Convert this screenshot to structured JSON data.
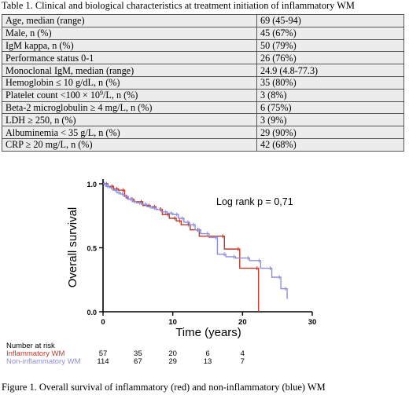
{
  "table": {
    "caption": "Table 1. Clinical and biological characteristics at treatment initiation of inflammatory WM",
    "rows": [
      {
        "label": "Age, median (range)",
        "value": "69 (45-94)"
      },
      {
        "label": "Male, n (%)",
        "value": "45 (67%)"
      },
      {
        "label": "IgM kappa, n (%)",
        "value": "50 (79%)"
      },
      {
        "label": "Performance status 0-1",
        "value": "26 (76%)"
      },
      {
        "label": "Monoclonal IgM, median (range)",
        "value": "24.9 (4.8-77.3)"
      },
      {
        "label": "Hemoglobin ≤ 10 g/dL, n (%)",
        "value": "35 (80%)"
      },
      {
        "label_pre": "Platelet count <100 × 10",
        "label_sup": "9",
        "label_post": "/L, n (%)",
        "value": "3 (8%)"
      },
      {
        "label": "Beta-2 microglobulin ≥ 4 mg/L, n (%)",
        "value": "6 (75%)"
      },
      {
        "label": "LDH ≥ 250, n (%)",
        "value": "3 (9%)"
      },
      {
        "label": "Albuminemia < 35 g/L, n (%)",
        "value": "29 (90%)"
      },
      {
        "label": "CRP ≥ 20 mg/L, n (%)",
        "value": "42 (68%)"
      }
    ]
  },
  "chart_data": {
    "type": "line",
    "ylabel": "Overall survival",
    "xlabel": "Time (years)",
    "xlim": [
      0,
      30
    ],
    "ylim": [
      0,
      1
    ],
    "xticks": [
      "0",
      "10",
      "20",
      "30"
    ],
    "yticks": [
      "0.0",
      "0.5",
      "1.0"
    ],
    "annotation": "Log rank p = 0,71",
    "colors": {
      "inflammatory": "#c0392b",
      "non_inflammatory": "#8c8ce0"
    },
    "series": [
      {
        "name": "Inflammatory WM",
        "step_x": [
          0,
          0.7,
          1.5,
          2.2,
          3.1,
          3.6,
          4.4,
          5.7,
          6.8,
          7.6,
          8.5,
          9.5,
          10.5,
          11.2,
          12.5,
          13.8,
          17.4,
          19.6,
          22.3
        ],
        "step_y": [
          1.0,
          0.98,
          0.96,
          0.95,
          0.9,
          0.88,
          0.86,
          0.83,
          0.82,
          0.8,
          0.76,
          0.73,
          0.71,
          0.68,
          0.64,
          0.59,
          0.49,
          0.34,
          0.0
        ],
        "end_x": 22.3
      },
      {
        "name": "Non-inflammatory WM",
        "step_x": [
          0,
          0.4,
          0.9,
          1.4,
          2.0,
          2.5,
          3.0,
          3.5,
          4.2,
          4.8,
          5.5,
          6.3,
          7.0,
          7.6,
          8.4,
          9.2,
          10.0,
          10.8,
          11.6,
          12.4,
          13.2,
          14.0,
          15.2,
          16.4,
          17.6,
          19.0,
          21.0,
          22.6,
          24.2,
          25.5,
          26.4
        ],
        "step_y": [
          1.0,
          0.98,
          0.97,
          0.95,
          0.93,
          0.92,
          0.9,
          0.88,
          0.86,
          0.85,
          0.84,
          0.82,
          0.81,
          0.8,
          0.78,
          0.77,
          0.76,
          0.73,
          0.7,
          0.68,
          0.64,
          0.61,
          0.58,
          0.45,
          0.43,
          0.42,
          0.4,
          0.34,
          0.27,
          0.18,
          0.1
        ],
        "end_x": 26.4
      }
    ]
  },
  "risk_table": {
    "title": "Number at risk",
    "rows": [
      {
        "label": "Inflammatory WM",
        "values": [
          "57",
          "35",
          "20",
          "6",
          "4"
        ]
      },
      {
        "label": "Non-inflammatory WM",
        "values": [
          "114",
          "67",
          "29",
          "13",
          "7"
        ]
      }
    ]
  },
  "figure_caption": "Figure 1. Overall survival of inflammatory (red) and non-inflammatory (blue) WM"
}
